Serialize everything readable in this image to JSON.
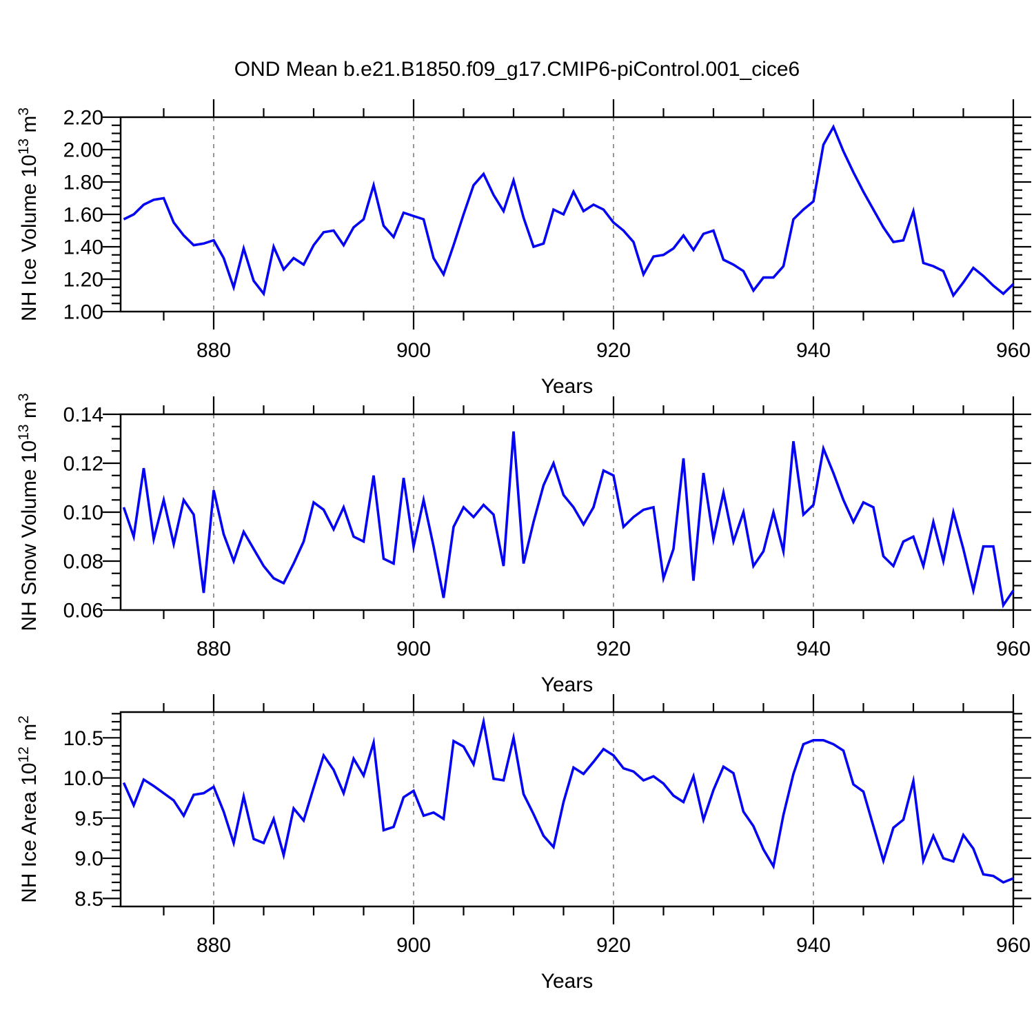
{
  "title": "OND Mean b.e21.B1850.f09_g17.CMIP6-piControl.001_cice6",
  "style": {
    "line_color": "#0404f2",
    "grid_color": "#8c8c8c",
    "axis_color": "#000000",
    "background": "#ffffff"
  },
  "chart_data": [
    {
      "type": "line",
      "name": "nh-ice-volume",
      "ylabel_parts": [
        {
          "t": "NH Ice Volume 10"
        },
        {
          "sup": "13"
        },
        {
          "t": " m"
        },
        {
          "sup": "3"
        }
      ],
      "xlabel": "Years",
      "x_start": 871,
      "x_step": 1,
      "xlim": [
        870.69,
        960
      ],
      "ylim": [
        1.0,
        2.2
      ],
      "y_ticks": {
        "values": [
          1.0,
          1.2,
          1.4,
          1.6,
          1.8,
          2.0,
          2.2
        ],
        "labels": [
          "1.00",
          "1.20",
          "1.40",
          "1.60",
          "1.80",
          "2.00",
          "2.20"
        ],
        "minor_step": 0.05
      },
      "x_ticks": {
        "values": [
          880,
          900,
          920,
          940,
          960
        ],
        "labels": [
          "880",
          "900",
          "920",
          "940",
          "960"
        ],
        "minor_step": 5
      },
      "x_grid": [
        880,
        900,
        920,
        940
      ],
      "values": [
        1.57,
        1.6,
        1.66,
        1.69,
        1.7,
        1.55,
        1.47,
        1.41,
        1.42,
        1.44,
        1.33,
        1.15,
        1.39,
        1.19,
        1.11,
        1.4,
        1.26,
        1.33,
        1.29,
        1.41,
        1.49,
        1.5,
        1.41,
        1.52,
        1.57,
        1.78,
        1.53,
        1.46,
        1.61,
        1.59,
        1.57,
        1.33,
        1.23,
        1.41,
        1.6,
        1.78,
        1.85,
        1.72,
        1.62,
        1.81,
        1.58,
        1.4,
        1.42,
        1.63,
        1.6,
        1.74,
        1.62,
        1.66,
        1.63,
        1.55,
        1.5,
        1.43,
        1.23,
        1.34,
        1.35,
        1.39,
        1.47,
        1.38,
        1.48,
        1.5,
        1.32,
        1.29,
        1.25,
        1.13,
        1.21,
        1.21,
        1.28,
        1.57,
        1.63,
        1.68,
        2.03,
        2.14,
        1.99,
        1.86,
        1.74,
        1.63,
        1.52,
        1.43,
        1.44,
        1.62,
        1.3,
        1.28,
        1.25,
        1.1,
        1.18,
        1.27,
        1.22,
        1.16,
        1.11,
        1.17
      ]
    },
    {
      "type": "line",
      "name": "nh-snow-volume",
      "ylabel_parts": [
        {
          "t": "NH Snow Volume 10"
        },
        {
          "sup": "13"
        },
        {
          "t": " m"
        },
        {
          "sup": "3"
        }
      ],
      "xlabel": "Years",
      "x_start": 871,
      "x_step": 1,
      "xlim": [
        870.69,
        960
      ],
      "ylim": [
        0.06,
        0.14
      ],
      "y_ticks": {
        "values": [
          0.06,
          0.08,
          0.1,
          0.12,
          0.14
        ],
        "labels": [
          "0.06",
          "0.08",
          "0.10",
          "0.12",
          "0.14"
        ],
        "minor_step": 0.005
      },
      "x_ticks": {
        "values": [
          880,
          900,
          920,
          940,
          960
        ],
        "labels": [
          "880",
          "900",
          "920",
          "940",
          "960"
        ],
        "minor_step": 5
      },
      "x_grid": [
        880,
        900,
        920,
        940
      ],
      "values": [
        0.102,
        0.09,
        0.118,
        0.089,
        0.105,
        0.087,
        0.105,
        0.099,
        0.067,
        0.109,
        0.091,
        0.08,
        0.092,
        0.085,
        0.078,
        0.073,
        0.071,
        0.079,
        0.088,
        0.104,
        0.101,
        0.093,
        0.102,
        0.09,
        0.088,
        0.115,
        0.081,
        0.079,
        0.114,
        0.086,
        0.105,
        0.086,
        0.065,
        0.094,
        0.102,
        0.098,
        0.103,
        0.099,
        0.078,
        0.133,
        0.079,
        0.096,
        0.111,
        0.12,
        0.107,
        0.102,
        0.095,
        0.102,
        0.117,
        0.115,
        0.094,
        0.098,
        0.101,
        0.102,
        0.073,
        0.085,
        0.122,
        0.072,
        0.116,
        0.089,
        0.108,
        0.088,
        0.1,
        0.078,
        0.084,
        0.1,
        0.084,
        0.129,
        0.099,
        0.103,
        0.126,
        0.116,
        0.105,
        0.096,
        0.104,
        0.102,
        0.082,
        0.078,
        0.088,
        0.09,
        0.078,
        0.096,
        0.08,
        0.1,
        0.085,
        0.068,
        0.086,
        0.086,
        0.062,
        0.068
      ]
    },
    {
      "type": "line",
      "name": "nh-ice-area",
      "ylabel_parts": [
        {
          "t": "NH Ice Area 10"
        },
        {
          "sup": "12"
        },
        {
          "t": " m"
        },
        {
          "sup": "2"
        }
      ],
      "xlabel": "Years",
      "x_start": 871,
      "x_step": 1,
      "xlim": [
        870.69,
        960
      ],
      "ylim": [
        8.4,
        10.82
      ],
      "y_ticks": {
        "values": [
          8.5,
          9.0,
          9.5,
          10.0,
          10.5
        ],
        "labels": [
          "8.5",
          "9.0",
          "9.5",
          "10.0",
          "10.5"
        ],
        "minor_step": 0.1
      },
      "x_ticks": {
        "values": [
          880,
          900,
          920,
          940,
          960
        ],
        "labels": [
          "880",
          "900",
          "920",
          "940",
          "960"
        ],
        "minor_step": 5
      },
      "x_grid": [
        880,
        900,
        920,
        940
      ],
      "values": [
        9.94,
        9.66,
        9.98,
        9.9,
        9.81,
        9.72,
        9.53,
        9.79,
        9.81,
        9.89,
        9.58,
        9.19,
        9.77,
        9.24,
        9.19,
        9.49,
        9.04,
        9.62,
        9.47,
        9.88,
        10.28,
        10.1,
        9.81,
        10.24,
        10.03,
        10.44,
        9.35,
        9.39,
        9.76,
        9.84,
        9.53,
        9.57,
        9.49,
        10.46,
        10.39,
        10.17,
        10.7,
        9.99,
        9.97,
        10.5,
        9.8,
        9.55,
        9.28,
        9.14,
        9.7,
        10.13,
        10.05,
        10.2,
        10.36,
        10.28,
        10.12,
        10.08,
        9.97,
        10.02,
        9.93,
        9.78,
        9.7,
        10.02,
        9.48,
        9.85,
        10.14,
        10.06,
        9.58,
        9.4,
        9.11,
        8.9,
        9.54,
        10.05,
        10.42,
        10.47,
        10.47,
        10.42,
        10.34,
        9.92,
        9.83,
        9.4,
        8.97,
        9.38,
        9.48,
        9.96,
        8.97,
        9.28,
        9.0,
        8.96,
        9.29,
        9.12,
        8.8,
        8.78,
        8.7,
        8.75
      ]
    }
  ]
}
